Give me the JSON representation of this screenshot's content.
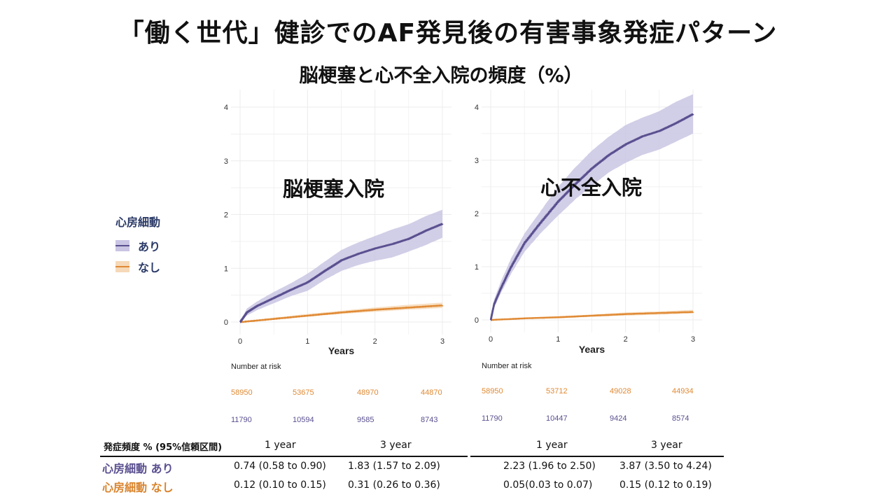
{
  "title": "「働く世代」健診でのAF発見後の有害事象発症パターン",
  "subtitle": "脳梗塞と心不全入院の頻度（%）",
  "colors": {
    "ari": "#5a5090",
    "ari_band": "#c9c5e3",
    "nashi": "#e08a35",
    "nashi_band": "#f6d9b8",
    "row_ari": "#5a5090",
    "row_nashi": "#d9842e",
    "grid": "#ececec"
  },
  "legend": {
    "title": "心房細動",
    "items": [
      {
        "label": "あり",
        "key": "ari"
      },
      {
        "label": "なし",
        "key": "nashi"
      }
    ]
  },
  "chart_data": [
    {
      "type": "line",
      "title": "脳梗塞入院",
      "xlabel": "Years",
      "ylabel": "",
      "xlim": [
        0,
        3
      ],
      "ylim": [
        0,
        4.3
      ],
      "xticks": [
        "0",
        "1",
        "2",
        "3"
      ],
      "yticks": [
        "0",
        "1",
        "2",
        "3",
        "4"
      ],
      "series": [
        {
          "name": "あり",
          "x": [
            0,
            0.1,
            0.25,
            0.5,
            0.75,
            1.0,
            1.25,
            1.5,
            1.75,
            2.0,
            2.25,
            2.5,
            2.75,
            3.0
          ],
          "y": [
            0,
            0.18,
            0.3,
            0.45,
            0.6,
            0.74,
            0.95,
            1.15,
            1.27,
            1.37,
            1.45,
            1.55,
            1.7,
            1.83
          ],
          "lower": [
            0,
            0.12,
            0.22,
            0.35,
            0.48,
            0.58,
            0.78,
            0.95,
            1.06,
            1.14,
            1.2,
            1.31,
            1.43,
            1.57
          ],
          "upper": [
            0,
            0.25,
            0.38,
            0.56,
            0.72,
            0.9,
            1.12,
            1.34,
            1.48,
            1.6,
            1.72,
            1.82,
            1.97,
            2.09
          ]
        },
        {
          "name": "なし",
          "x": [
            0,
            0.5,
            1.0,
            1.5,
            2.0,
            2.5,
            3.0
          ],
          "y": [
            0,
            0.06,
            0.12,
            0.18,
            0.23,
            0.27,
            0.31
          ],
          "lower": [
            0,
            0.05,
            0.1,
            0.15,
            0.19,
            0.23,
            0.26
          ],
          "upper": [
            0,
            0.08,
            0.15,
            0.21,
            0.27,
            0.32,
            0.36
          ]
        }
      ],
      "risk_table": {
        "title": "Number at risk",
        "nashi": [
          "58950",
          "53675",
          "48970",
          "44870"
        ],
        "ari": [
          "11790",
          "10594",
          "9585",
          "8743"
        ]
      }
    },
    {
      "type": "line",
      "title": "心不全入院",
      "xlabel": "Years",
      "ylabel": "",
      "xlim": [
        0,
        3
      ],
      "ylim": [
        0,
        4.3
      ],
      "xticks": [
        "0",
        "1",
        "2",
        "3"
      ],
      "yticks": [
        "0",
        "1",
        "2",
        "3",
        "4"
      ],
      "series": [
        {
          "name": "あり",
          "x": [
            0,
            0.05,
            0.15,
            0.3,
            0.5,
            0.75,
            1.0,
            1.25,
            1.5,
            1.75,
            2.0,
            2.25,
            2.5,
            2.75,
            3.0
          ],
          "y": [
            0,
            0.3,
            0.6,
            1.0,
            1.45,
            1.85,
            2.23,
            2.55,
            2.85,
            3.1,
            3.3,
            3.45,
            3.55,
            3.7,
            3.87
          ],
          "lower": [
            0,
            0.22,
            0.5,
            0.86,
            1.28,
            1.64,
            1.96,
            2.26,
            2.52,
            2.77,
            2.95,
            3.1,
            3.2,
            3.35,
            3.5
          ],
          "upper": [
            0,
            0.38,
            0.72,
            1.15,
            1.62,
            2.06,
            2.5,
            2.86,
            3.18,
            3.44,
            3.66,
            3.8,
            3.92,
            4.1,
            4.24
          ]
        },
        {
          "name": "なし",
          "x": [
            0,
            0.5,
            1.0,
            1.5,
            2.0,
            2.5,
            3.0
          ],
          "y": [
            0,
            0.03,
            0.05,
            0.08,
            0.11,
            0.13,
            0.15
          ],
          "lower": [
            0,
            0.02,
            0.03,
            0.06,
            0.08,
            0.1,
            0.12
          ],
          "upper": [
            0,
            0.04,
            0.07,
            0.1,
            0.14,
            0.16,
            0.19
          ]
        }
      ],
      "risk_table": {
        "title": "Number at risk",
        "nashi": [
          "58950",
          "53712",
          "49028",
          "44934"
        ],
        "ari": [
          "11790",
          "10447",
          "9424",
          "8574"
        ]
      }
    }
  ],
  "table": {
    "header_label": "発症頻度 % (95%信頼区間)",
    "col_1year": "1 year",
    "col_3year": "3 year",
    "row_ari_label": "心房細動 あり",
    "row_nashi_label": "心房細動 なし",
    "stroke": {
      "ari_1y": "0.74 (0.58 to 0.90)",
      "ari_3y": "1.83 (1.57 to 2.09)",
      "nashi_1y": "0.12 (0.10 to 0.15)",
      "nashi_3y": "0.31 (0.26 to 0.36)"
    },
    "hf": {
      "ari_1y": "2.23 (1.96 to 2.50)",
      "ari_3y": "3.87 (3.50 to 4.24)",
      "nashi_1y": "0.05(0.03 to 0.07)",
      "nashi_3y": "0.15 (0.12 to 0.19)"
    }
  }
}
